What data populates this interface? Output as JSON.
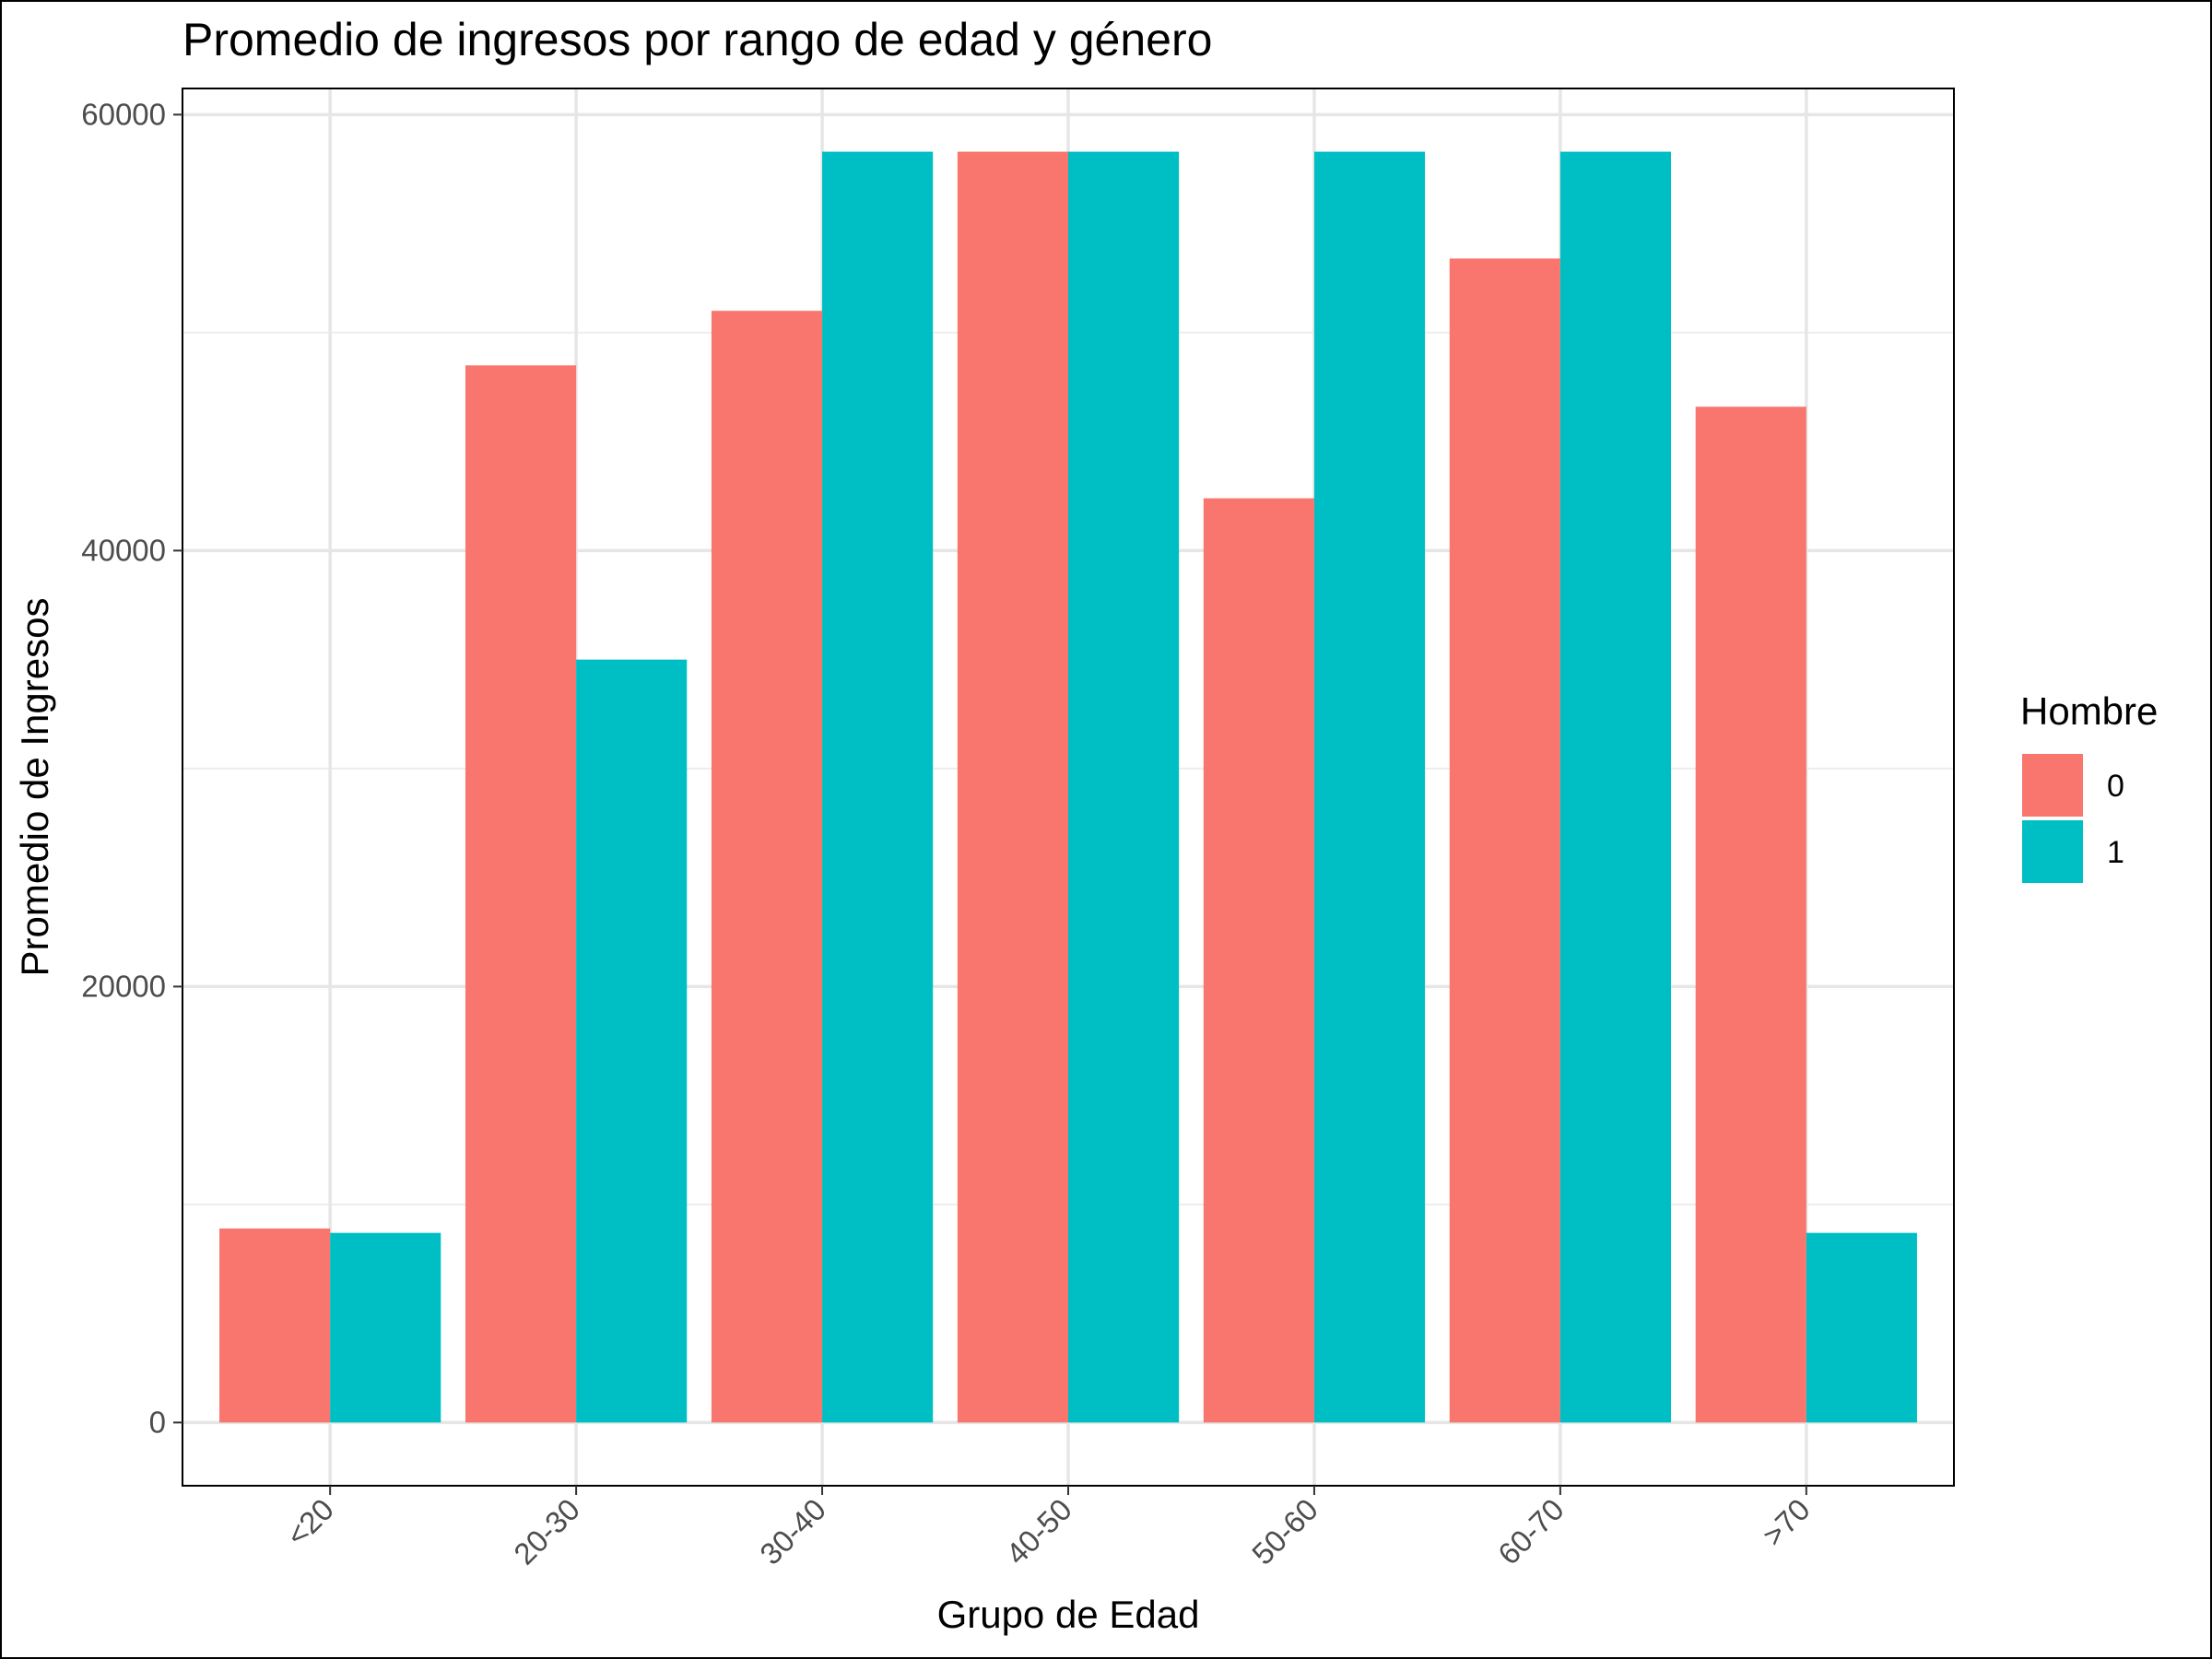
{
  "chart_data": {
    "type": "bar",
    "title": "Promedio de ingresos por rango de edad y género",
    "xlabel": "Grupo de Edad",
    "ylabel": "Promedio de Ingresos",
    "categories": [
      "<20",
      "20-30",
      "30-40",
      "40-50",
      "50-60",
      "60-70",
      ">70"
    ],
    "series": [
      {
        "name": "0",
        "color": "#F8766D",
        "values": [
          8900,
          48500,
          51000,
          58300,
          42400,
          53400,
          46600
        ]
      },
      {
        "name": "1",
        "color": "#00BFC4",
        "values": [
          8700,
          35000,
          58300,
          58300,
          58300,
          58300,
          8700
        ]
      }
    ],
    "ylim": [
      -2900,
      61200
    ],
    "yticks": [
      0,
      20000,
      40000,
      60000
    ],
    "yticks_minor": [
      10000,
      30000,
      50000
    ],
    "ytick_labels": [
      "0",
      "20000",
      "40000",
      "60000"
    ],
    "legend": {
      "title": "Hombre",
      "position": "right"
    },
    "grid": true,
    "theme": "minimal-with-border"
  }
}
